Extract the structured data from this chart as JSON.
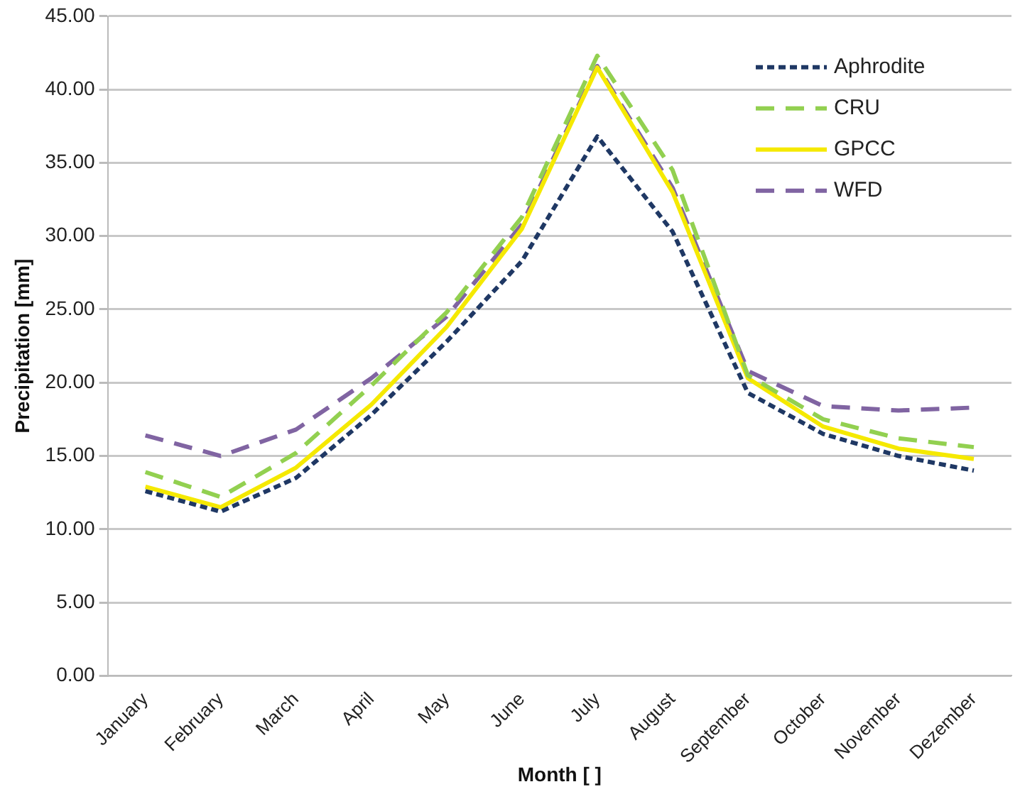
{
  "chart_data": {
    "type": "line",
    "xlabel": "Month [ ]",
    "ylabel": "Precipitation [mm]",
    "categories": [
      "January",
      "February",
      "March",
      "April",
      "May",
      "June",
      "July",
      "August",
      "September",
      "October",
      "November",
      "Dezember"
    ],
    "series": [
      {
        "name": "Aphrodite",
        "color": "#1f3864",
        "line_style": "dotted",
        "values": [
          12.6,
          11.2,
          13.5,
          17.8,
          22.8,
          28.3,
          36.8,
          30.3,
          19.3,
          16.5,
          15.0,
          14.0
        ]
      },
      {
        "name": "CRU",
        "color": "#92d050",
        "line_style": "dashed",
        "values": [
          13.9,
          12.2,
          15.2,
          19.8,
          24.8,
          31.3,
          42.3,
          34.5,
          20.5,
          17.5,
          16.2,
          15.6
        ]
      },
      {
        "name": "GPCC",
        "color": "#f5e900",
        "line_style": "solid",
        "values": [
          12.9,
          11.5,
          14.2,
          18.5,
          23.8,
          30.5,
          41.5,
          33.0,
          20.3,
          17.0,
          15.5,
          14.8
        ]
      },
      {
        "name": "WFD",
        "color": "#8064a2",
        "line_style": "dashed",
        "values": [
          16.4,
          15.0,
          16.8,
          20.3,
          24.5,
          30.8,
          41.6,
          33.3,
          20.8,
          18.4,
          18.1,
          18.3
        ]
      }
    ],
    "ylim": [
      0,
      45
    ],
    "yticks": [
      {
        "value": 0,
        "label": "0.00"
      },
      {
        "value": 5,
        "label": "5.00"
      },
      {
        "value": 10,
        "label": "10.00"
      },
      {
        "value": 15,
        "label": "15.00"
      },
      {
        "value": 20,
        "label": "20.00"
      },
      {
        "value": 25,
        "label": "25.00"
      },
      {
        "value": 30,
        "label": "30.00"
      },
      {
        "value": 35,
        "label": "35.00"
      },
      {
        "value": 40,
        "label": "40.00"
      },
      {
        "value": 45,
        "label": "45.00"
      }
    ],
    "grid": "y",
    "legend": "top right",
    "marker": "none"
  }
}
